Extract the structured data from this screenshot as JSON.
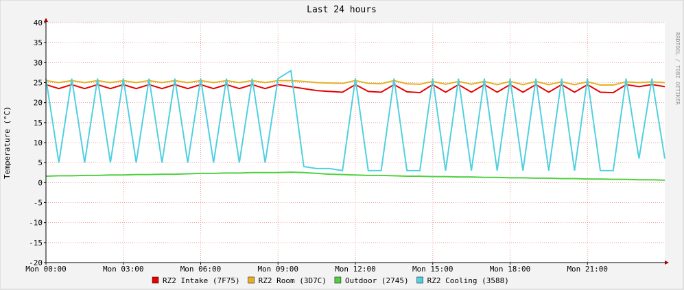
{
  "chart_data": {
    "type": "line",
    "title": "Last 24 hours",
    "y_label": "Temperature (°C)",
    "watermark": "RRDTOOL / TOBI OETIKER",
    "x": [
      0,
      0.5,
      1,
      1.5,
      2,
      2.5,
      3,
      3.5,
      4,
      4.5,
      5,
      5.5,
      6,
      6.5,
      7,
      7.5,
      8,
      8.5,
      9,
      9.5,
      10,
      10.5,
      11,
      11.5,
      12,
      12.5,
      13,
      13.5,
      14,
      14.5,
      15,
      15.5,
      16,
      16.5,
      17,
      17.5,
      18,
      18.5,
      19,
      19.5,
      20,
      20.5,
      21,
      21.5,
      22,
      22.5,
      23,
      23.5,
      24
    ],
    "xlim": [
      0,
      24
    ],
    "xticks": [
      {
        "value": 0,
        "label": "Mon 00:00"
      },
      {
        "value": 3,
        "label": "Mon 03:00"
      },
      {
        "value": 6,
        "label": "Mon 06:00"
      },
      {
        "value": 9,
        "label": "Mon 09:00"
      },
      {
        "value": 12,
        "label": "Mon 12:00"
      },
      {
        "value": 15,
        "label": "Mon 15:00"
      },
      {
        "value": 18,
        "label": "Mon 18:00"
      },
      {
        "value": 21,
        "label": "Mon 21:00"
      }
    ],
    "ylim": [
      -20,
      40
    ],
    "yticks": [
      -20,
      -15,
      -10,
      -5,
      0,
      5,
      10,
      15,
      20,
      25,
      30,
      35,
      40
    ],
    "grid": true,
    "series": [
      {
        "name": "RZ2 Intake (7F75)",
        "color": "#e80000",
        "values": [
          24.5,
          23.5,
          24.5,
          23.5,
          24.5,
          23.5,
          24.5,
          23.5,
          24.5,
          23.5,
          24.5,
          23.5,
          24.5,
          23.5,
          24.5,
          23.5,
          24.5,
          23.5,
          24.5,
          24,
          23.5,
          23,
          22.8,
          22.6,
          24.5,
          22.8,
          22.6,
          24.5,
          22.7,
          22.5,
          24.5,
          22.6,
          24.5,
          22.6,
          24.5,
          22.6,
          24.5,
          22.6,
          24.5,
          22.6,
          24.5,
          22.6,
          24.5,
          22.6,
          22.5,
          24.5,
          24,
          24.5,
          24
        ]
      },
      {
        "name": "RZ2 Room (3D7C)",
        "color": "#e8b020",
        "values": [
          25.5,
          25,
          25.5,
          25,
          25.5,
          25,
          25.5,
          25,
          25.5,
          25,
          25.5,
          25,
          25.5,
          25,
          25.5,
          25,
          25.5,
          25,
          25.5,
          25.5,
          25.3,
          25,
          24.9,
          24.8,
          25.5,
          24.8,
          24.7,
          25.5,
          24.7,
          24.6,
          25.3,
          24.6,
          25.3,
          24.6,
          25.3,
          24.5,
          25.3,
          24.5,
          25.3,
          24.5,
          25.2,
          24.5,
          25.2,
          24.4,
          24.4,
          25.2,
          25,
          25.2,
          25
        ]
      },
      {
        "name": "Outdoor (2745)",
        "color": "#50d040",
        "values": [
          1.6,
          1.7,
          1.7,
          1.8,
          1.8,
          1.9,
          1.9,
          2,
          2,
          2.1,
          2.1,
          2.2,
          2.3,
          2.3,
          2.4,
          2.4,
          2.5,
          2.5,
          2.5,
          2.6,
          2.5,
          2.3,
          2.1,
          2,
          1.9,
          1.8,
          1.8,
          1.7,
          1.6,
          1.6,
          1.5,
          1.5,
          1.4,
          1.4,
          1.3,
          1.3,
          1.2,
          1.2,
          1.1,
          1.1,
          1.0,
          1.0,
          0.9,
          0.9,
          0.8,
          0.8,
          0.7,
          0.7,
          0.6
        ]
      },
      {
        "name": "RZ2 Cooling (3588)",
        "color": "#50d0e0",
        "values": [
          26,
          5,
          26,
          5,
          26,
          5,
          26,
          5,
          26,
          5,
          26,
          5,
          26,
          5,
          26,
          5,
          26,
          5,
          26,
          28,
          4,
          3.5,
          3.5,
          3,
          26,
          3,
          3,
          26,
          3,
          3,
          26,
          3,
          26,
          3,
          26,
          3,
          26,
          3,
          26,
          3,
          26,
          3,
          26,
          3,
          3,
          26,
          6,
          26,
          6
        ]
      }
    ]
  }
}
